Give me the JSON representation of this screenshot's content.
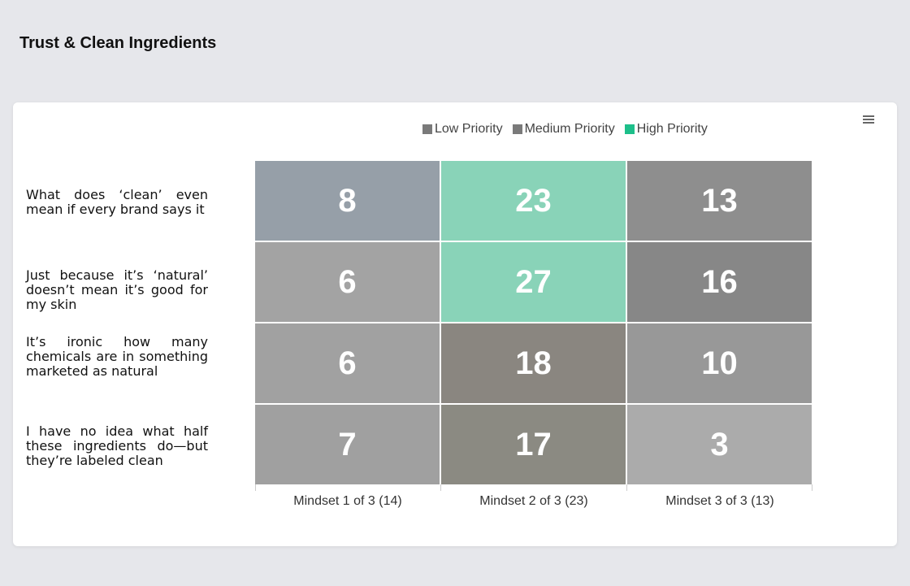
{
  "title": "Trust & Clean Ingredients",
  "menu_icon": "hamburger-menu-icon",
  "legend": [
    {
      "label": "Low Priority",
      "color": "#7a7a7a"
    },
    {
      "label": "Medium Priority",
      "color": "#7a7a7a"
    },
    {
      "label": "High Priority",
      "color": "#1dbf8a"
    }
  ],
  "chart_data": {
    "type": "heatmap",
    "title": "Trust & Clean Ingredients",
    "rows": [
      "What does ‘clean’ even mean if every brand says it",
      "Just because it’s ‘natural’ doesn’t mean it’s good for my skin",
      "It’s ironic how many chemicals are in something marketed as natural",
      "I have no idea what half these ingredients do—but they’re labeled clean"
    ],
    "columns": [
      "Mindset 1 of 3 (14)",
      "Mindset 2 of 3 (23)",
      "Mindset 3 of 3 (13)"
    ],
    "values": [
      [
        8,
        23,
        13
      ],
      [
        6,
        27,
        16
      ],
      [
        6,
        18,
        10
      ],
      [
        7,
        17,
        3
      ]
    ],
    "cell_colors": [
      [
        "#969fa8",
        "#89d3b8",
        "#8e8e8e"
      ],
      [
        "#a3a3a3",
        "#89d3b8",
        "#878787"
      ],
      [
        "#a1a1a1",
        "#8a8680",
        "#989898"
      ],
      [
        "#a0a0a0",
        "#8b8a82",
        "#ababab"
      ]
    ],
    "legend_position": "top"
  }
}
